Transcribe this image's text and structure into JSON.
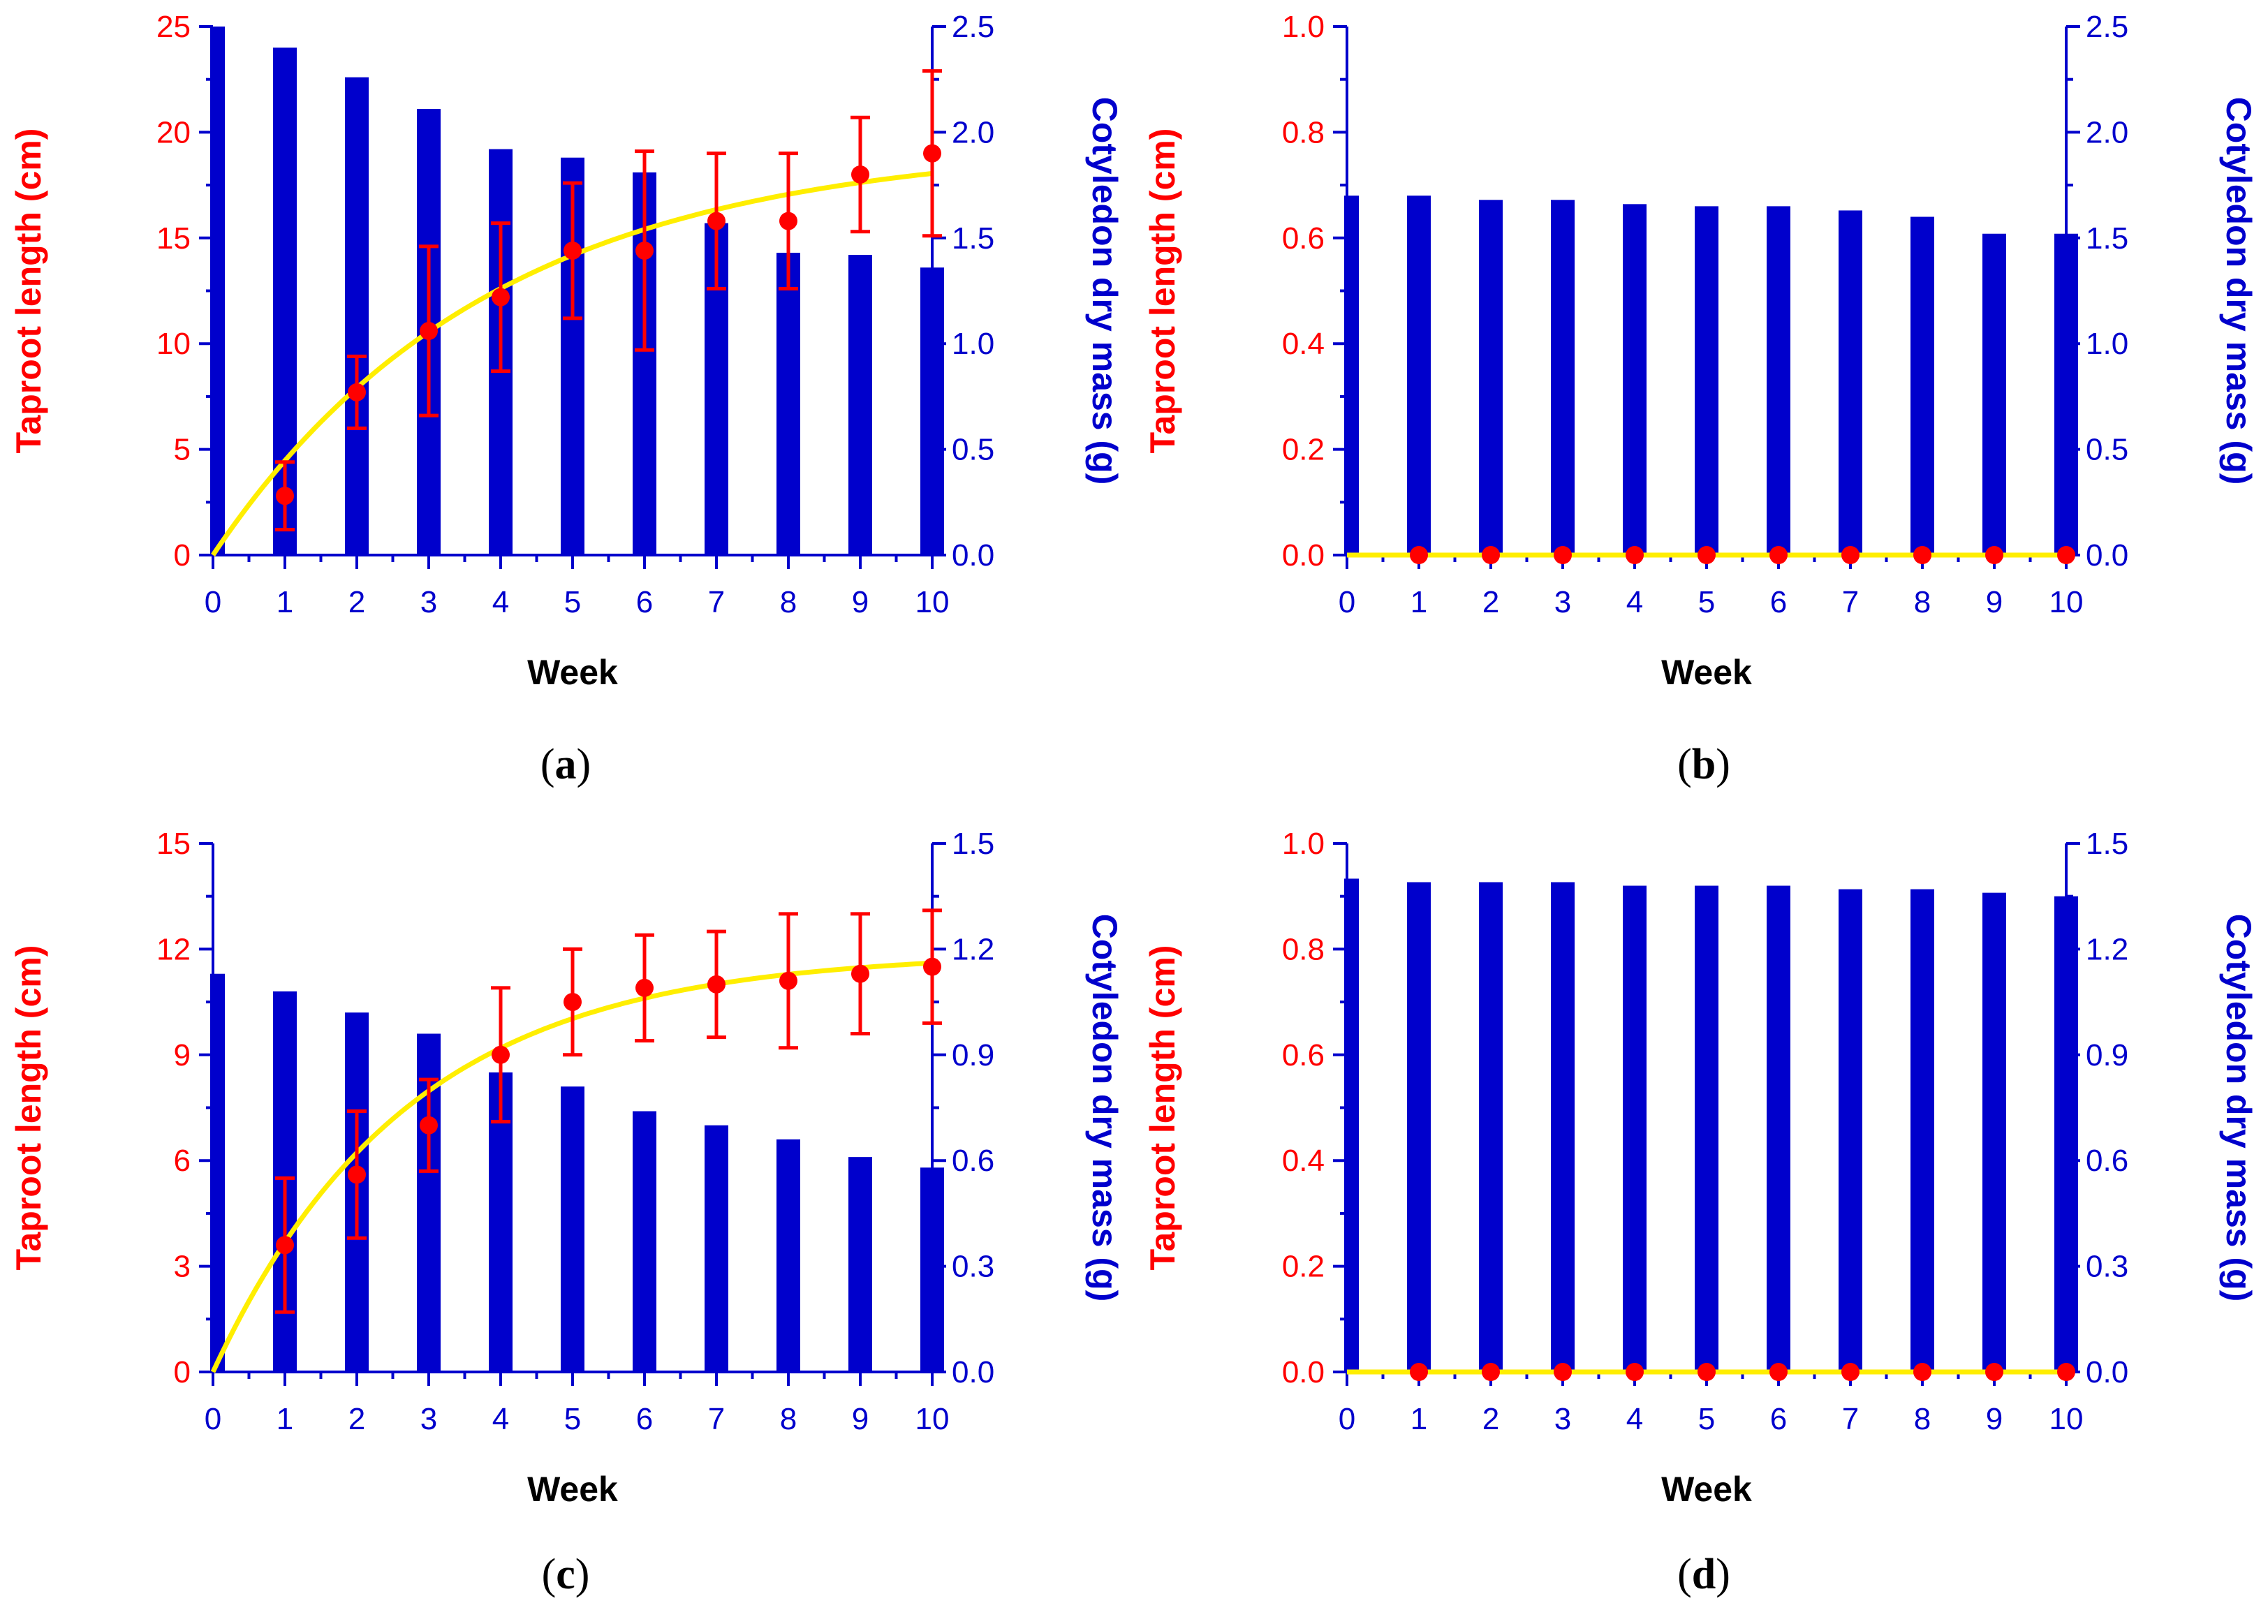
{
  "colors": {
    "bar": "#0000cc",
    "points": "#ff0000",
    "fit": "#ffee00",
    "xlabel": "#000000"
  },
  "chart_data": [
    {
      "type": "bar",
      "panel": "a",
      "caption_letter": "a",
      "xlabel": "Week",
      "ylabel_left": "Taproot length (cm)",
      "ylabel_right": "Cotyledon dry mass (g)",
      "x": [
        0,
        1,
        2,
        3,
        4,
        5,
        6,
        7,
        8,
        9,
        10
      ],
      "x_ticks": [
        "0",
        "1",
        "2",
        "3",
        "4",
        "5",
        "6",
        "7",
        "8",
        "9",
        "10"
      ],
      "ylim_left": [
        0,
        25
      ],
      "ylim_right": [
        0,
        2.5
      ],
      "left_ticks": [
        "0",
        "5",
        "10",
        "15",
        "20",
        "25"
      ],
      "right_ticks": [
        "0.0",
        "0.5",
        "1.0",
        "1.5",
        "2.0",
        "2.5"
      ],
      "series": [
        {
          "name": "Cotyledon dry mass (g)",
          "kind": "bar",
          "axis": "right",
          "values": [
            2.5,
            2.4,
            2.26,
            2.11,
            1.92,
            1.88,
            1.81,
            1.57,
            1.43,
            1.42,
            1.36
          ]
        },
        {
          "name": "Taproot length (cm)",
          "kind": "points",
          "axis": "left",
          "x": [
            1,
            2,
            3,
            4,
            5,
            6,
            7,
            8,
            9,
            10
          ],
          "values": [
            2.8,
            7.7,
            10.6,
            12.2,
            14.4,
            14.4,
            15.8,
            15.8,
            18.0,
            19.0
          ],
          "errors": [
            1.6,
            1.7,
            4.0,
            3.5,
            3.2,
            4.7,
            3.2,
            3.2,
            2.7,
            3.9
          ]
        },
        {
          "name": "Fit",
          "kind": "curve",
          "axis": "left",
          "asymptote": 19.5,
          "rate": 0.26
        }
      ]
    },
    {
      "type": "bar",
      "panel": "b",
      "caption_letter": "b",
      "xlabel": "Week",
      "ylabel_left": "Taproot length (cm)",
      "ylabel_right": "Cotyledon dry mass (g)",
      "x": [
        0,
        1,
        2,
        3,
        4,
        5,
        6,
        7,
        8,
        9,
        10
      ],
      "x_ticks": [
        "0",
        "1",
        "2",
        "3",
        "4",
        "5",
        "6",
        "7",
        "8",
        "9",
        "10"
      ],
      "ylim_left": [
        0,
        1.0
      ],
      "ylim_right": [
        0,
        2.5
      ],
      "left_ticks": [
        "0.0",
        "0.2",
        "0.4",
        "0.6",
        "0.8",
        "1.0"
      ],
      "right_ticks": [
        "0.0",
        "0.5",
        "1.0",
        "1.5",
        "2.0",
        "2.5"
      ],
      "series": [
        {
          "name": "Cotyledon dry mass (g)",
          "kind": "bar",
          "axis": "right",
          "values": [
            1.7,
            1.7,
            1.68,
            1.68,
            1.66,
            1.65,
            1.65,
            1.63,
            1.6,
            1.52,
            1.52
          ]
        },
        {
          "name": "Taproot length (cm)",
          "kind": "points",
          "axis": "left",
          "x": [
            1,
            2,
            3,
            4,
            5,
            6,
            7,
            8,
            9,
            10
          ],
          "values": [
            0,
            0,
            0,
            0,
            0,
            0,
            0,
            0,
            0,
            0
          ],
          "errors": [
            0,
            0,
            0,
            0,
            0,
            0,
            0,
            0,
            0,
            0
          ]
        },
        {
          "name": "Fit",
          "kind": "curve",
          "axis": "left",
          "asymptote": 0,
          "rate": 0.26
        }
      ]
    },
    {
      "type": "bar",
      "panel": "c",
      "caption_letter": "c",
      "xlabel": "Week",
      "ylabel_left": "Taproot length (cm)",
      "ylabel_right": "Cotyledon dry mass (g)",
      "x": [
        0,
        1,
        2,
        3,
        4,
        5,
        6,
        7,
        8,
        9,
        10
      ],
      "x_ticks": [
        "0",
        "1",
        "2",
        "3",
        "4",
        "5",
        "6",
        "7",
        "8",
        "9",
        "10"
      ],
      "ylim_left": [
        0,
        15
      ],
      "ylim_right": [
        0,
        1.5
      ],
      "left_ticks": [
        "0",
        "3",
        "6",
        "9",
        "12",
        "15"
      ],
      "right_ticks": [
        "0.0",
        "0.3",
        "0.6",
        "0.9",
        "1.2",
        "1.5"
      ],
      "series": [
        {
          "name": "Cotyledon dry mass (g)",
          "kind": "bar",
          "axis": "right",
          "values": [
            1.13,
            1.08,
            1.02,
            0.96,
            0.85,
            0.81,
            0.74,
            0.7,
            0.66,
            0.61,
            0.58
          ]
        },
        {
          "name": "Taproot length (cm)",
          "kind": "points",
          "axis": "left",
          "x": [
            1,
            2,
            3,
            4,
            5,
            6,
            7,
            8,
            9,
            10
          ],
          "values": [
            3.6,
            5.6,
            7.0,
            9.0,
            10.5,
            10.9,
            11.0,
            11.1,
            11.3,
            11.5
          ],
          "errors": [
            1.9,
            1.8,
            1.3,
            1.9,
            1.5,
            1.5,
            1.5,
            1.9,
            1.7,
            1.6
          ]
        },
        {
          "name": "Fit",
          "kind": "curve",
          "axis": "left",
          "asymptote": 11.9,
          "rate": 0.37
        }
      ]
    },
    {
      "type": "bar",
      "panel": "d",
      "caption_letter": "d",
      "xlabel": "Week",
      "ylabel_left": "Taproot length (cm)",
      "ylabel_right": "Cotyledon dry mass (g)",
      "x": [
        0,
        1,
        2,
        3,
        4,
        5,
        6,
        7,
        8,
        9,
        10
      ],
      "x_ticks": [
        "0",
        "1",
        "2",
        "3",
        "4",
        "5",
        "6",
        "7",
        "8",
        "9",
        "10"
      ],
      "ylim_left": [
        0,
        1.0
      ],
      "ylim_right": [
        0,
        1.5
      ],
      "left_ticks": [
        "0.0",
        "0.2",
        "0.4",
        "0.6",
        "0.8",
        "1.0"
      ],
      "right_ticks": [
        "0.0",
        "0.3",
        "0.6",
        "0.9",
        "1.2",
        "1.5"
      ],
      "series": [
        {
          "name": "Cotyledon dry mass (g)",
          "kind": "bar",
          "axis": "right",
          "values": [
            1.4,
            1.39,
            1.39,
            1.39,
            1.38,
            1.38,
            1.38,
            1.37,
            1.37,
            1.36,
            1.35
          ]
        },
        {
          "name": "Taproot length (cm)",
          "kind": "points",
          "axis": "left",
          "x": [
            1,
            2,
            3,
            4,
            5,
            6,
            7,
            8,
            9,
            10
          ],
          "values": [
            0,
            0,
            0,
            0,
            0,
            0,
            0,
            0,
            0,
            0
          ],
          "errors": [
            0,
            0,
            0,
            0,
            0,
            0,
            0,
            0,
            0,
            0
          ]
        },
        {
          "name": "Fit",
          "kind": "curve",
          "axis": "left",
          "asymptote": 0,
          "rate": 0.26
        }
      ]
    }
  ]
}
